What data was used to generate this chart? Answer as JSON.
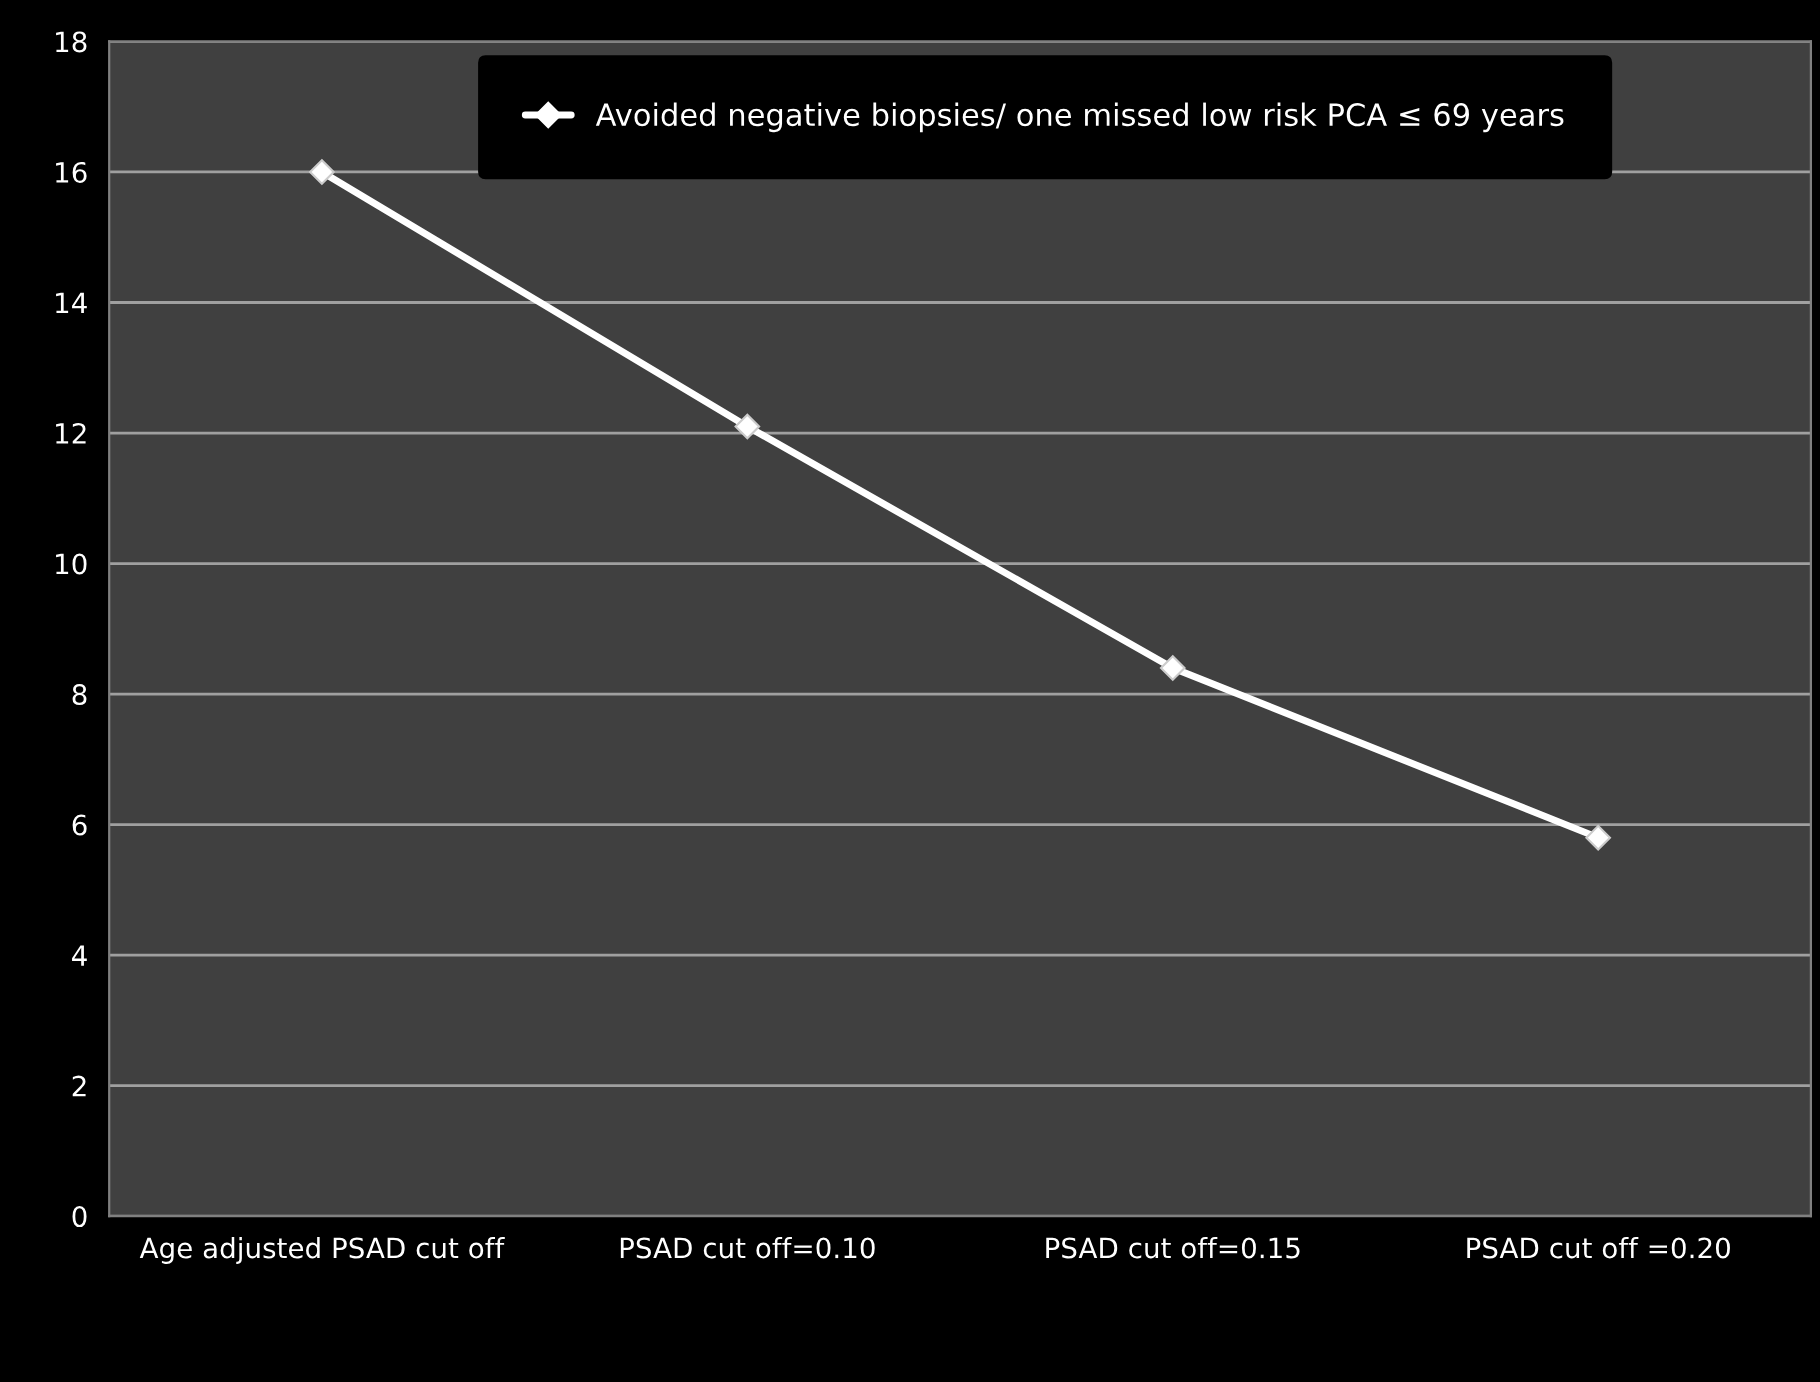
{
  "chart_data": {
    "type": "line",
    "categories": [
      "Age adjusted PSAD cut off",
      "PSAD cut off=0.10",
      "PSAD cut off=0.15",
      "PSAD cut off =0.20"
    ],
    "series": [
      {
        "name": "Avoided negative biopsies/ one missed low risk PCA ≤ 69 years",
        "color": "#ffffff",
        "values": [
          16.0,
          12.1,
          8.4,
          5.8
        ]
      }
    ],
    "ylim": [
      0,
      18
    ],
    "yticks": [
      0,
      2,
      4,
      6,
      8,
      10,
      12,
      14,
      16,
      18
    ],
    "grid": "y",
    "legend": "top",
    "marker": "diamond",
    "line_style": "solid"
  }
}
